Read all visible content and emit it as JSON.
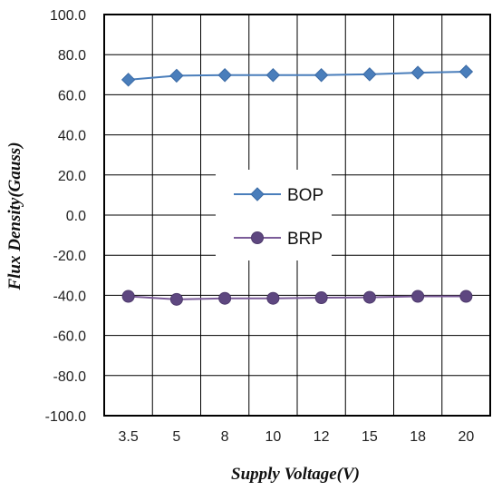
{
  "chart_data": {
    "type": "line",
    "xlabel": "Supply Voltage(V)",
    "ylabel": "Flux Density(Gauss)",
    "categories": [
      "3.5",
      "5",
      "8",
      "10",
      "12",
      "15",
      "18",
      "20"
    ],
    "ylim": [
      -100,
      100
    ],
    "yticks": [
      "100.0",
      "80.0",
      "60.0",
      "40.0",
      "20.0",
      "0.0",
      "-20.0",
      "-40.0",
      "-60.0",
      "-80.0",
      "-100.0"
    ],
    "ytick_values": [
      100,
      80,
      60,
      40,
      20,
      0,
      -20,
      -40,
      -60,
      -80,
      -100
    ],
    "grid": true,
    "legend_position": "center",
    "series": [
      {
        "name": "BOP",
        "values": [
          67.5,
          69.5,
          69.8,
          69.8,
          69.8,
          70.2,
          71.0,
          71.5
        ],
        "color": "#4a7ebb",
        "marker": "diamond"
      },
      {
        "name": "BRP",
        "values": [
          -40.5,
          -42.0,
          -41.5,
          -41.5,
          -41.2,
          -41.0,
          -40.5,
          -40.5
        ],
        "color": "#7b5c99",
        "marker": "circle"
      }
    ]
  }
}
